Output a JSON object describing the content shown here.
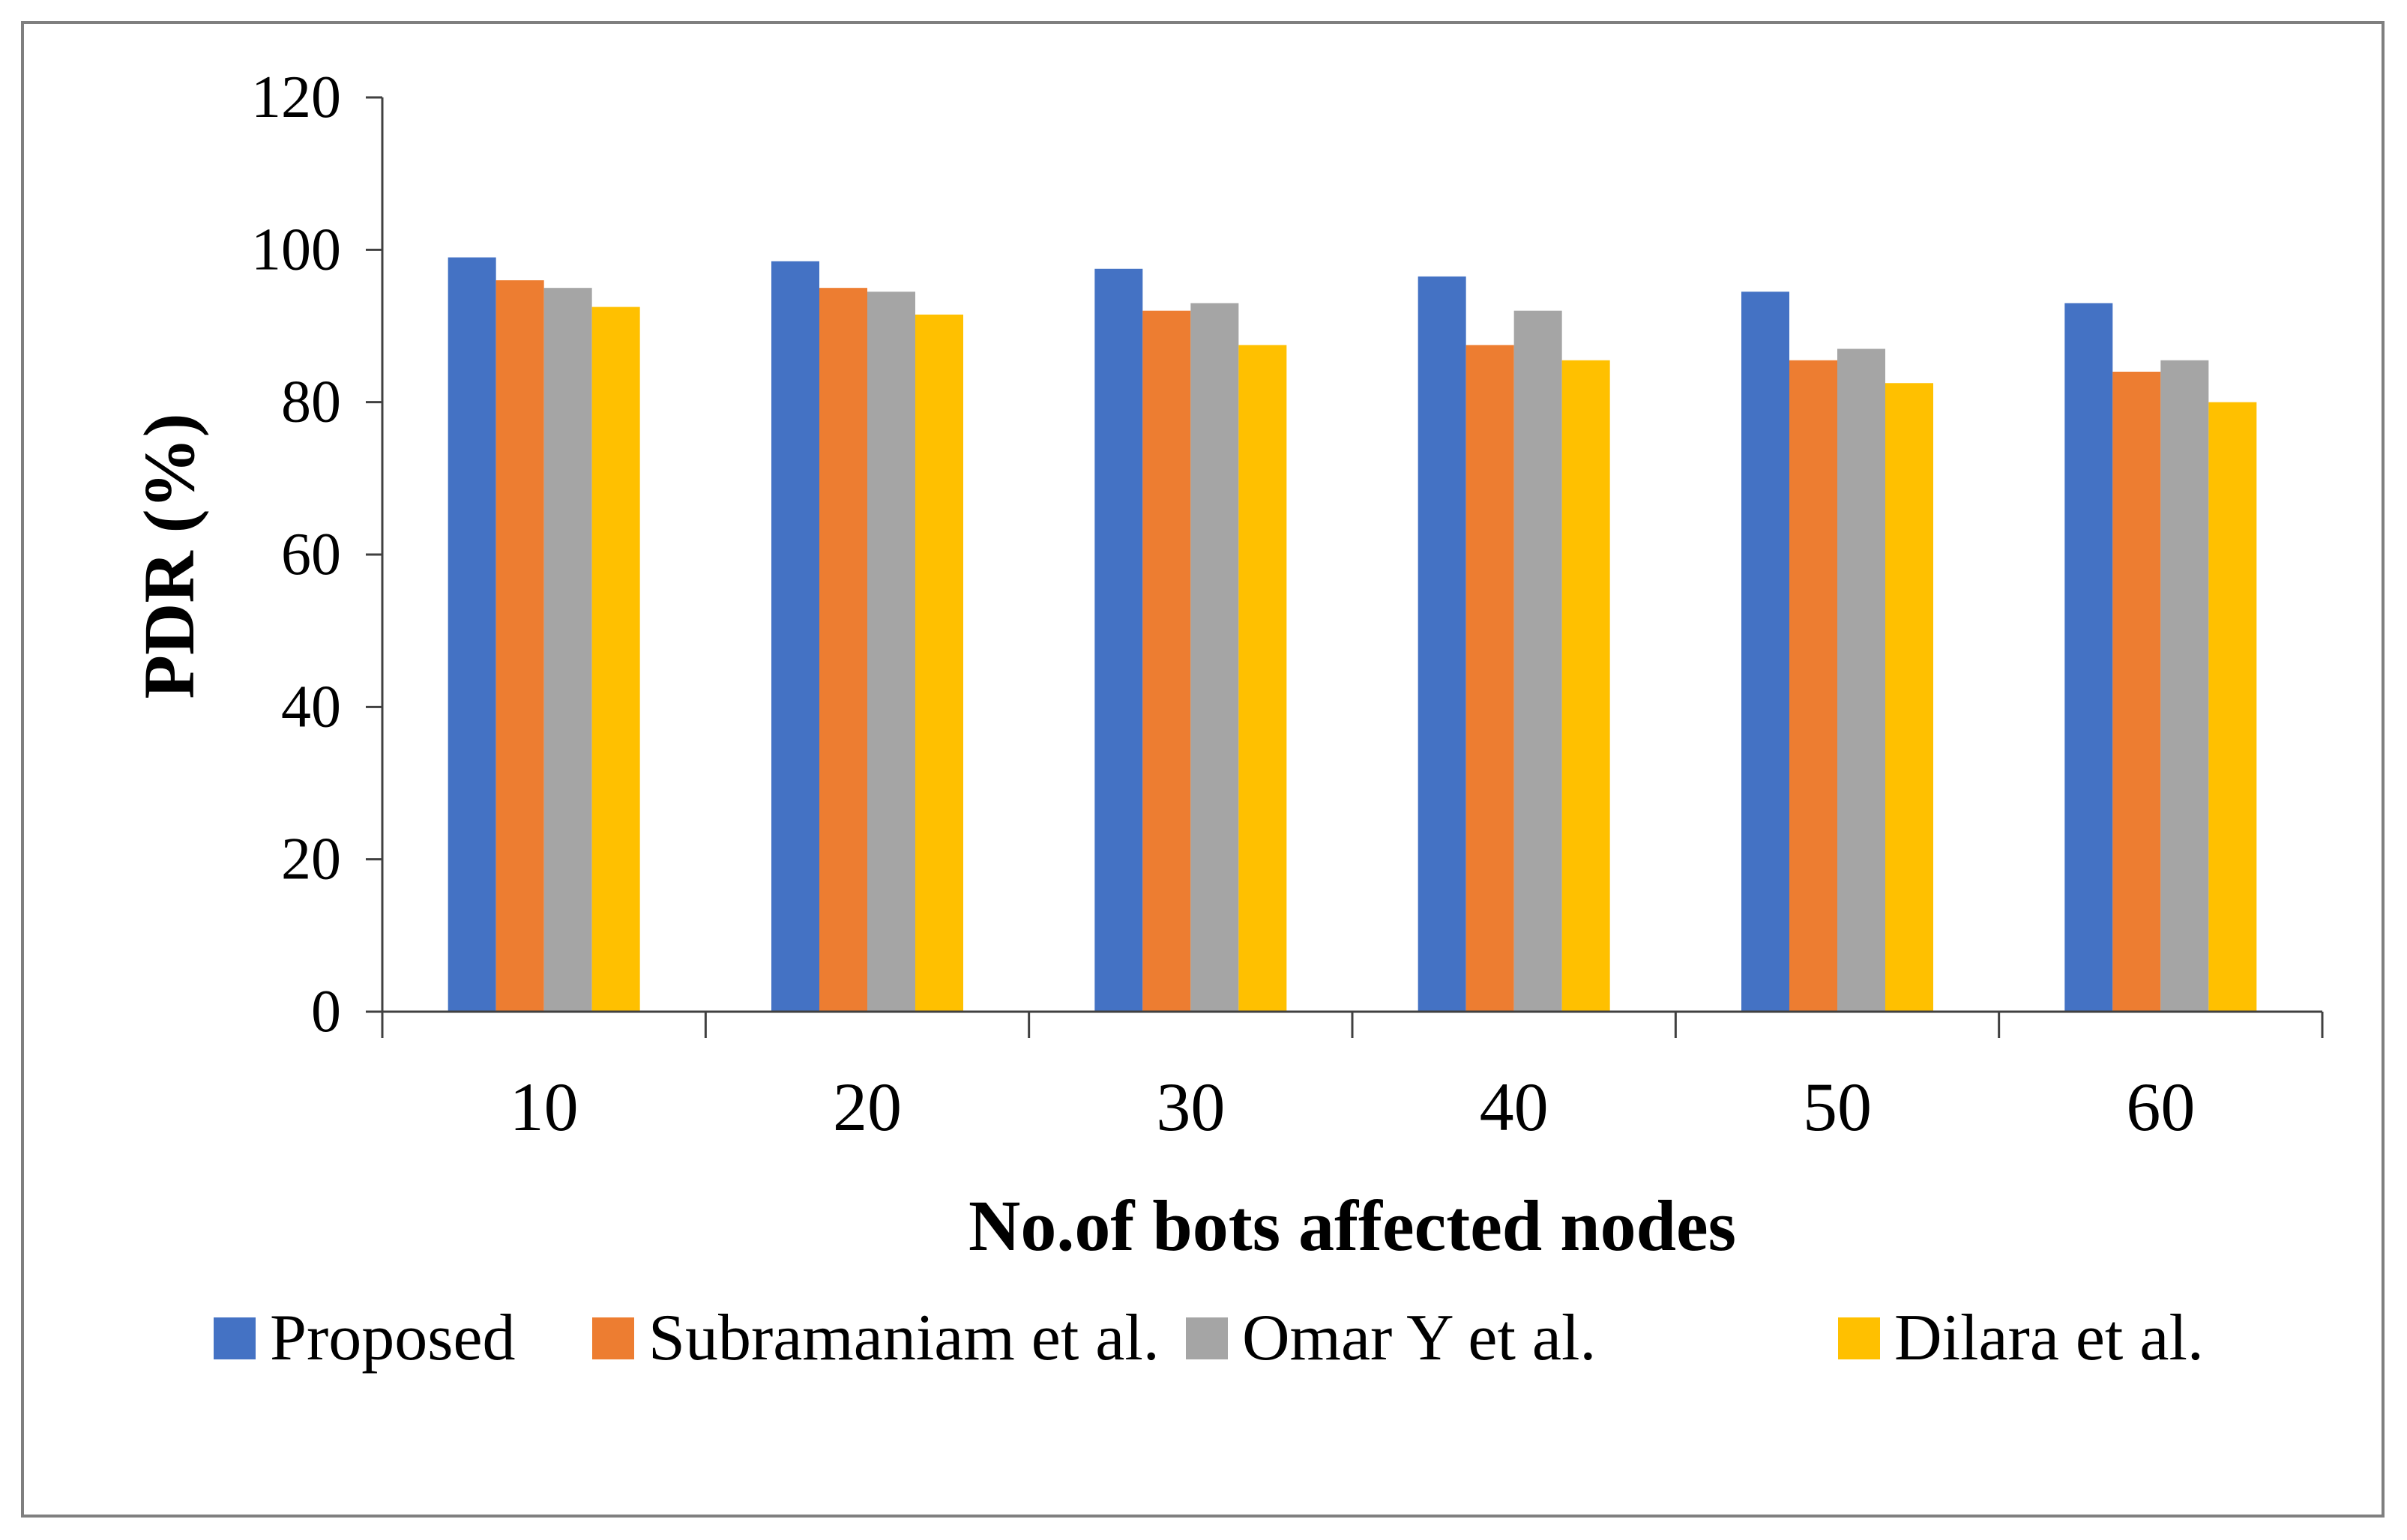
{
  "chart_data": {
    "type": "bar",
    "title": "",
    "xlabel": "No.of bots affected nodes",
    "ylabel": "PDR (%)",
    "ylim": [
      0,
      120
    ],
    "yticks": [
      0,
      20,
      40,
      60,
      80,
      100,
      120
    ],
    "grid": false,
    "legend_position": "bottom",
    "categories": [
      "10",
      "20",
      "30",
      "40",
      "50",
      "60"
    ],
    "series": [
      {
        "name": "Proposed",
        "color": "#4472C4",
        "values": [
          99,
          98.5,
          97.5,
          96.5,
          94.5,
          93
        ]
      },
      {
        "name": "Subramaniam et al.",
        "color": "#ED7D31",
        "values": [
          96,
          95,
          92,
          87.5,
          85.5,
          84
        ]
      },
      {
        "name": "Omar Y et al.",
        "color": "#A5A5A5",
        "values": [
          95,
          94.5,
          93,
          92,
          87,
          85.5
        ]
      },
      {
        "name": "Dilara et al.",
        "color": "#FFC000",
        "values": [
          92.5,
          91.5,
          87.5,
          85.5,
          82.5,
          80
        ]
      }
    ]
  }
}
